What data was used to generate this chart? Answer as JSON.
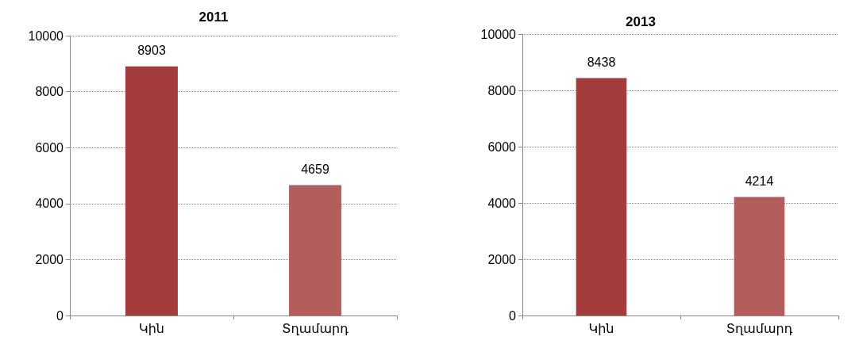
{
  "chart_data": [
    {
      "type": "bar",
      "title": "2011",
      "categories": [
        "Կին",
        "Տղամարդ"
      ],
      "values": [
        8903,
        4659
      ],
      "colors": [
        "#a33c3a",
        "#b25e5c"
      ],
      "ylim": [
        0,
        10000
      ],
      "yticks": [
        0,
        2000,
        4000,
        6000,
        8000,
        10000
      ],
      "grid": "y",
      "data_labels": true
    },
    {
      "type": "bar",
      "title": "2013",
      "categories": [
        "Կին",
        "Տղամարդ"
      ],
      "values": [
        8438,
        4214
      ],
      "colors": [
        "#a33c3a",
        "#b25e5c"
      ],
      "ylim": [
        0,
        10000
      ],
      "yticks": [
        0,
        2000,
        4000,
        6000,
        8000,
        10000
      ],
      "grid": "y",
      "data_labels": true
    }
  ]
}
